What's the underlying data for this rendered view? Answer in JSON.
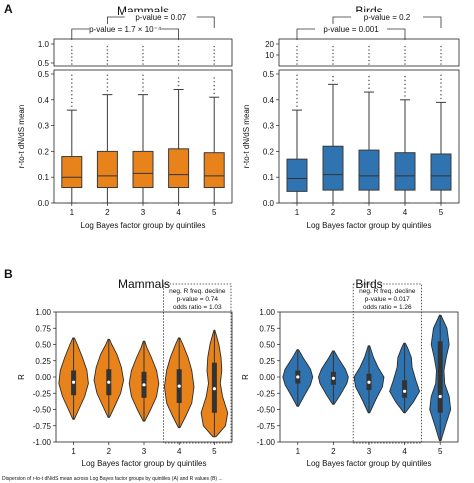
{
  "figure": {
    "panel_a_label": "A",
    "panel_b_label": "B",
    "caption_fragment": "Dispersion of r-to-t dN/dS mean across Log Bayes factor groups by quintiles (A) and R values (B) ..."
  },
  "colors": {
    "mammals": "#e8831c",
    "birds": "#2f74b0",
    "outline": "#3a3a3a",
    "median": "#333333"
  },
  "chart_data": [
    {
      "id": "A-mammals",
      "type": "box",
      "title": "Mammals",
      "xlabel": "Log Bayes factor group by quintiles",
      "ylabel": "r-to-t dN/dS mean",
      "categories": [
        "1",
        "2",
        "3",
        "4",
        "5"
      ],
      "ylim": [
        0,
        0.5
      ],
      "yticks": [
        "0.0",
        "0.1",
        "0.2",
        "0.3",
        "0.4",
        "0.5"
      ],
      "broken_axis_upper": {
        "range": [
          0.5,
          1.0
        ],
        "ticks": [
          "0.5",
          "1.0"
        ]
      },
      "boxes": [
        {
          "whislo": 0.0,
          "q1": 0.06,
          "med": 0.1,
          "q3": 0.18,
          "whishi": 0.36
        },
        {
          "whislo": 0.0,
          "q1": 0.06,
          "med": 0.105,
          "q3": 0.2,
          "whishi": 0.42
        },
        {
          "whislo": 0.0,
          "q1": 0.06,
          "med": 0.115,
          "q3": 0.2,
          "whishi": 0.42
        },
        {
          "whislo": 0.0,
          "q1": 0.06,
          "med": 0.11,
          "q3": 0.21,
          "whishi": 0.44
        },
        {
          "whislo": 0.0,
          "q1": 0.06,
          "med": 0.105,
          "q3": 0.195,
          "whishi": 0.41
        }
      ],
      "annotations": [
        {
          "text": "p-value = 0.07",
          "from": 2,
          "to": 5
        },
        {
          "text": "p-value = 1.7 × 10⁻⁴",
          "from": 1,
          "to": 4
        }
      ]
    },
    {
      "id": "A-birds",
      "type": "box",
      "title": "Birds",
      "xlabel": "Log Bayes factor group by quintiles",
      "ylabel": "r-to-t dN/dS mean",
      "categories": [
        "1",
        "2",
        "3",
        "4",
        "5"
      ],
      "ylim": [
        0,
        0.5
      ],
      "yticks": [
        "0.0",
        "0.1",
        "0.2",
        "0.3",
        "0.4",
        "0.5"
      ],
      "broken_axis_upper": {
        "range": [
          0.5,
          20
        ],
        "ticks": [
          "10",
          "20"
        ]
      },
      "boxes": [
        {
          "whislo": 0.0,
          "q1": 0.045,
          "med": 0.095,
          "q3": 0.17,
          "whishi": 0.36
        },
        {
          "whislo": 0.0,
          "q1": 0.05,
          "med": 0.11,
          "q3": 0.22,
          "whishi": 0.46
        },
        {
          "whislo": 0.0,
          "q1": 0.05,
          "med": 0.105,
          "q3": 0.205,
          "whishi": 0.43
        },
        {
          "whislo": 0.0,
          "q1": 0.05,
          "med": 0.105,
          "q3": 0.195,
          "whishi": 0.4
        },
        {
          "whislo": 0.0,
          "q1": 0.05,
          "med": 0.105,
          "q3": 0.19,
          "whishi": 0.39
        }
      ],
      "annotations": [
        {
          "text": "p-value = 0.2",
          "from": 2,
          "to": 5
        },
        {
          "text": "p-value = 0.001",
          "from": 1,
          "to": 4
        }
      ]
    },
    {
      "id": "B-mammals",
      "type": "violin",
      "title": "Mammals",
      "xlabel": "Log Bayes factor group by quintiles",
      "ylabel": "R",
      "categories": [
        "1",
        "2",
        "3",
        "4",
        "5"
      ],
      "ylim": [
        -1.0,
        1.0
      ],
      "yticks": [
        "1.00",
        "0.75",
        "0.50",
        "0.25",
        "0.00",
        "-0.25",
        "-0.50",
        "-0.75",
        "-1.00"
      ],
      "violins": [
        {
          "lo": -0.65,
          "hi": 0.6,
          "median": -0.08,
          "q1": -0.28,
          "q3": 0.1,
          "profile": [
            [
              -0.65,
              0.05
            ],
            [
              -0.5,
              0.35
            ],
            [
              -0.3,
              0.75
            ],
            [
              -0.1,
              1.0
            ],
            [
              0.1,
              0.9
            ],
            [
              0.3,
              0.6
            ],
            [
              0.5,
              0.25
            ],
            [
              0.6,
              0.05
            ]
          ]
        },
        {
          "lo": -0.62,
          "hi": 0.58,
          "median": -0.08,
          "q1": -0.28,
          "q3": 0.12,
          "profile": [
            [
              -0.62,
              0.05
            ],
            [
              -0.45,
              0.4
            ],
            [
              -0.25,
              0.8
            ],
            [
              -0.05,
              1.0
            ],
            [
              0.15,
              0.85
            ],
            [
              0.35,
              0.55
            ],
            [
              0.5,
              0.2
            ],
            [
              0.58,
              0.05
            ]
          ]
        },
        {
          "lo": -0.68,
          "hi": 0.55,
          "median": -0.12,
          "q1": -0.32,
          "q3": 0.08,
          "profile": [
            [
              -0.68,
              0.05
            ],
            [
              -0.5,
              0.45
            ],
            [
              -0.3,
              0.85
            ],
            [
              -0.1,
              1.0
            ],
            [
              0.1,
              0.85
            ],
            [
              0.3,
              0.5
            ],
            [
              0.45,
              0.2
            ],
            [
              0.55,
              0.05
            ]
          ]
        },
        {
          "lo": -0.78,
          "hi": 0.6,
          "median": -0.14,
          "q1": -0.4,
          "q3": 0.12,
          "profile": [
            [
              -0.78,
              0.05
            ],
            [
              -0.6,
              0.45
            ],
            [
              -0.4,
              0.85
            ],
            [
              -0.15,
              1.0
            ],
            [
              0.1,
              0.85
            ],
            [
              0.3,
              0.6
            ],
            [
              0.5,
              0.25
            ],
            [
              0.6,
              0.05
            ]
          ]
        },
        {
          "lo": -0.92,
          "hi": 0.72,
          "median": -0.18,
          "q1": -0.55,
          "q3": 0.22,
          "profile": [
            [
              -0.92,
              0.1
            ],
            [
              -0.75,
              0.75
            ],
            [
              -0.55,
              0.9
            ],
            [
              -0.3,
              0.55
            ],
            [
              -0.1,
              0.4
            ],
            [
              0.1,
              0.5
            ],
            [
              0.3,
              0.45
            ],
            [
              0.5,
              0.3
            ],
            [
              0.65,
              0.12
            ],
            [
              0.72,
              0.03
            ]
          ]
        }
      ],
      "annotation_box": {
        "from": 4,
        "to": 5,
        "lines": [
          "neg. R freq. decline",
          "p-value = 0.74",
          "odds ratio = 1.03"
        ]
      }
    },
    {
      "id": "B-birds",
      "type": "violin",
      "title": "Birds",
      "xlabel": "Log Bayes factor group by quintiles",
      "ylabel": "R",
      "categories": [
        "1",
        "2",
        "3",
        "4",
        "5"
      ],
      "ylim": [
        -1.0,
        1.0
      ],
      "yticks": [
        "1.00",
        "0.75",
        "0.50",
        "0.25",
        "0.00",
        "-0.25",
        "-0.50",
        "-0.75",
        "-1.00"
      ],
      "violins": [
        {
          "lo": -0.45,
          "hi": 0.42,
          "median": 0.0,
          "q1": -0.1,
          "q3": 0.1,
          "profile": [
            [
              -0.45,
              0.05
            ],
            [
              -0.3,
              0.4
            ],
            [
              -0.12,
              0.85
            ],
            [
              0.0,
              1.0
            ],
            [
              0.12,
              0.85
            ],
            [
              0.28,
              0.4
            ],
            [
              0.42,
              0.05
            ]
          ]
        },
        {
          "lo": -0.42,
          "hi": 0.4,
          "median": -0.02,
          "q1": -0.12,
          "q3": 0.08,
          "profile": [
            [
              -0.42,
              0.05
            ],
            [
              -0.28,
              0.45
            ],
            [
              -0.1,
              0.9
            ],
            [
              0.0,
              1.0
            ],
            [
              0.12,
              0.8
            ],
            [
              0.28,
              0.35
            ],
            [
              0.4,
              0.05
            ]
          ]
        },
        {
          "lo": -0.55,
          "hi": 0.48,
          "median": -0.08,
          "q1": -0.2,
          "q3": 0.05,
          "profile": [
            [
              -0.55,
              0.05
            ],
            [
              -0.35,
              0.45
            ],
            [
              -0.15,
              0.9
            ],
            [
              0.0,
              1.0
            ],
            [
              0.15,
              0.6
            ],
            [
              0.3,
              0.3
            ],
            [
              0.48,
              0.05
            ]
          ]
        },
        {
          "lo": -0.55,
          "hi": 0.52,
          "median": -0.22,
          "q1": -0.32,
          "q3": -0.05,
          "profile": [
            [
              -0.55,
              0.05
            ],
            [
              -0.38,
              0.6
            ],
            [
              -0.22,
              1.0
            ],
            [
              -0.05,
              0.75
            ],
            [
              0.15,
              0.5
            ],
            [
              0.3,
              0.45
            ],
            [
              0.45,
              0.2
            ],
            [
              0.52,
              0.05
            ]
          ]
        },
        {
          "lo": -0.98,
          "hi": 0.95,
          "median": -0.3,
          "q1": -0.55,
          "q3": 0.55,
          "profile": [
            [
              -0.98,
              0.05
            ],
            [
              -0.75,
              0.35
            ],
            [
              -0.5,
              0.7
            ],
            [
              -0.3,
              0.6
            ],
            [
              -0.1,
              0.3
            ],
            [
              0.1,
              0.25
            ],
            [
              0.3,
              0.4
            ],
            [
              0.5,
              0.6
            ],
            [
              0.75,
              0.45
            ],
            [
              0.95,
              0.05
            ]
          ]
        }
      ],
      "annotation_box": {
        "from": 3,
        "to": 4,
        "lines": [
          "neg. R freq. decline",
          "p-value = 0.017",
          "odds ratio = 1.26"
        ]
      }
    }
  ]
}
